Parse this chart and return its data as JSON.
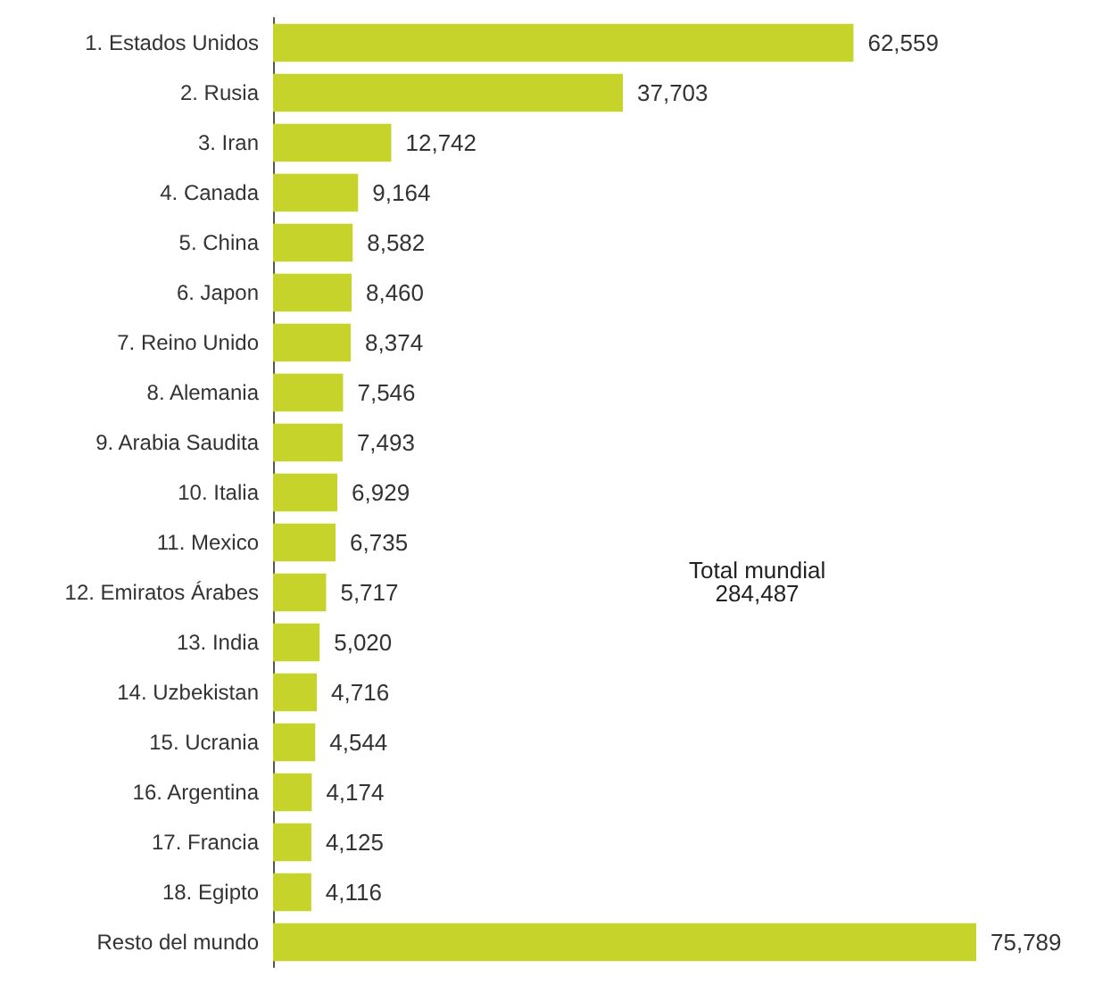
{
  "chart_data": {
    "type": "bar",
    "orientation": "horizontal",
    "categories": [
      "1. Estados Unidos",
      "2. Rusia",
      "3. Iran",
      "4. Canada",
      "5. China",
      "6. Japon",
      "7. Reino Unido",
      "8. Alemania",
      "9. Arabia Saudita",
      "10. Italia",
      "11. Mexico",
      "12. Emiratos Árabes",
      "13. India",
      "14. Uzbekistan",
      "15. Ucrania",
      "16. Argentina",
      "17. Francia",
      "18. Egipto",
      "Resto del mundo"
    ],
    "values": [
      62559,
      37703,
      12742,
      9164,
      8582,
      8460,
      8374,
      7546,
      7493,
      6929,
      6735,
      5717,
      5020,
      4716,
      4544,
      4174,
      4125,
      4116,
      75789
    ],
    "value_labels": [
      "62,559",
      "37,703",
      "12,742",
      "9,164",
      "8,582",
      "8,460",
      "8,374",
      "7,546",
      "7,493",
      "6,929",
      "6,735",
      "5,717",
      "5,020",
      "4,716",
      "4,544",
      "4,174",
      "4,125",
      "4,116",
      "75,789"
    ],
    "color": "#c5d32a",
    "annotations": [
      "Total mundial\n284,487"
    ]
  }
}
